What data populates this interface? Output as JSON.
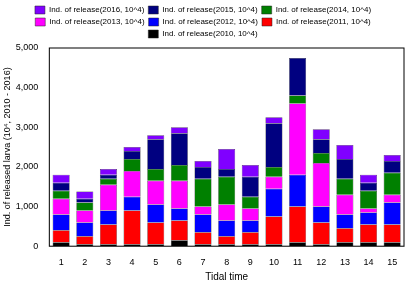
{
  "chart_data": {
    "type": "bar",
    "stacked": true,
    "x_label": "Tidal time",
    "y_label": "Ind. of released larva (10⁴, 2010 - 2016)",
    "categories": [
      "1",
      "2",
      "3",
      "4",
      "5",
      "6",
      "7",
      "8",
      "9",
      "10",
      "11",
      "12",
      "13",
      "14",
      "15"
    ],
    "series": [
      {
        "name": "Ind. of release(2010, 10^4)",
        "color": "#000000",
        "values": [
          100,
          50,
          50,
          50,
          50,
          150,
          50,
          50,
          50,
          50,
          100,
          50,
          100,
          100,
          100
        ]
      },
      {
        "name": "Ind. of release(2011, 10^4)",
        "color": "#ff0000",
        "values": [
          300,
          200,
          500,
          850,
          550,
          500,
          300,
          200,
          300,
          700,
          900,
          550,
          350,
          450,
          450
        ]
      },
      {
        "name": "Ind. of release(2012, 10^4)",
        "color": "#0000ff",
        "values": [
          400,
          350,
          350,
          350,
          450,
          300,
          450,
          400,
          300,
          700,
          800,
          400,
          350,
          300,
          550
        ]
      },
      {
        "name": "Ind. of release(2013, 10^4)",
        "color": "#ff00ff",
        "values": [
          400,
          300,
          650,
          650,
          600,
          700,
          200,
          400,
          300,
          300,
          1800,
          1100,
          500,
          100,
          200
        ]
      },
      {
        "name": "Ind. of release(2014, 10^4)",
        "color": "#008000",
        "values": [
          200,
          200,
          150,
          300,
          300,
          400,
          700,
          700,
          300,
          250,
          200,
          250,
          400,
          450,
          550
        ]
      },
      {
        "name": "Ind. of release(2015, 10^4)",
        "color": "#000080",
        "values": [
          200,
          100,
          100,
          200,
          750,
          800,
          300,
          200,
          500,
          1100,
          950,
          350,
          500,
          200,
          300
        ]
      },
      {
        "name": "Ind. of release(2016, 10^4)",
        "color": "#8000ff",
        "values": [
          200,
          180,
          150,
          100,
          100,
          150,
          150,
          500,
          300,
          150,
          0,
          250,
          350,
          200,
          150
        ]
      }
    ],
    "ylim": [
      0,
      5000
    ],
    "yticks": [
      0,
      1000,
      2000,
      3000,
      4000,
      5000
    ],
    "grid": false,
    "legend": "top"
  }
}
